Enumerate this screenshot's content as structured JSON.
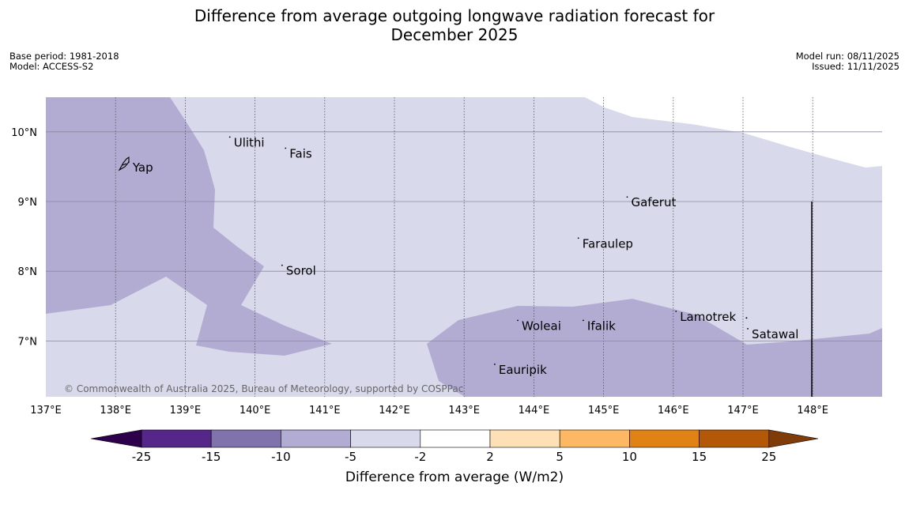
{
  "title": {
    "line1": "Difference from average outgoing longwave radiation forecast for",
    "line2": "December 2025"
  },
  "meta_left": {
    "base_period": "Base period: 1981-2018",
    "model": "Model: ACCESS-S2"
  },
  "meta_right": {
    "model_run": "Model run: 08/11/2025",
    "issued": "Issued: 11/11/2025"
  },
  "copyright": "© Commonwealth of Australia 2025, Bureau of Meteorology, supported by COSPPac",
  "map": {
    "lon_range": [
      137.0,
      149.0
    ],
    "lat_range": [
      6.2,
      10.5
    ],
    "lon_ticks": [
      "137°E",
      "138°E",
      "139°E",
      "140°E",
      "141°E",
      "142°E",
      "143°E",
      "144°E",
      "145°E",
      "146°E",
      "147°E",
      "148°E"
    ],
    "lat_ticks": [
      "10°N",
      "9°N",
      "8°N",
      "7°N"
    ],
    "background_category": "-5 to -2",
    "places": [
      {
        "name": "Yap",
        "lon": 138.2,
        "lat": 9.52
      },
      {
        "name": "Ulithi",
        "lon": 139.65,
        "lat": 9.88
      },
      {
        "name": "Fais",
        "lon": 140.45,
        "lat": 9.72
      },
      {
        "name": "Gaferut",
        "lon": 145.35,
        "lat": 9.02
      },
      {
        "name": "Faraulep",
        "lon": 144.65,
        "lat": 8.43
      },
      {
        "name": "Sorol",
        "lon": 140.4,
        "lat": 8.04
      },
      {
        "name": "Lamotrek",
        "lon": 146.05,
        "lat": 7.38
      },
      {
        "name": "Satawal",
        "lon": 147.08,
        "lat": 7.13
      },
      {
        "name": "Woleai",
        "lon": 143.78,
        "lat": 7.25
      },
      {
        "name": "Ifalik",
        "lon": 144.72,
        "lat": 7.25
      },
      {
        "name": "Eauripik",
        "lon": 143.45,
        "lat": 6.62
      }
    ]
  },
  "colorbar": {
    "label": "Difference from average (W/m2)",
    "ticks": [
      "-25",
      "-15",
      "-10",
      "-5",
      "-2",
      "2",
      "5",
      "10",
      "15",
      "25"
    ],
    "colors": {
      "under": "#2d004b",
      "bins": [
        "#542788",
        "#8073ac",
        "#b2abd2",
        "#d8daeb",
        "#ffffff",
        "#fee0b6",
        "#fdb863",
        "#e08214",
        "#b35806"
      ],
      "over": "#7f3b08"
    }
  }
}
